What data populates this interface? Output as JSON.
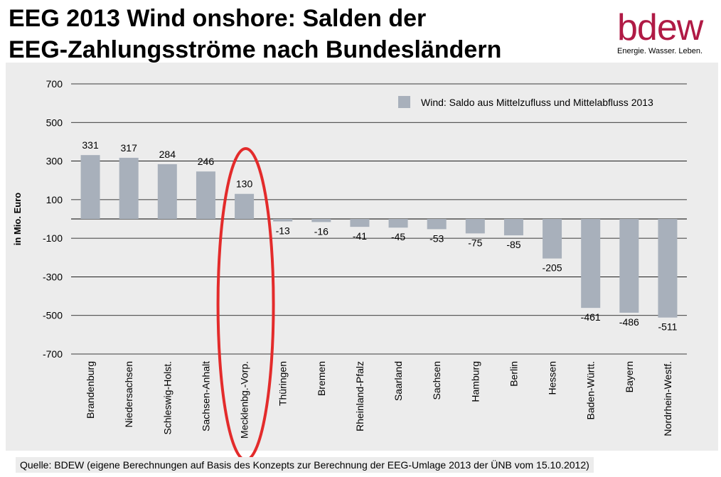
{
  "header": {
    "title_line1": "EEG 2013 Wind onshore: Salden der",
    "title_line2": "EEG-Zahlungsströme nach Bundesländern"
  },
  "logo": {
    "word": "bdew",
    "tagline": "Energie. Wasser. Leben.",
    "color": "#b01a45"
  },
  "source": "Quelle: BDEW (eigene Berechnungen auf Basis des Konzepts zur Berechnung der EEG-Umlage 2013 der ÜNB vom 15.10.2012)",
  "chart_data": {
    "type": "bar",
    "ylabel": "in Mio. Euro",
    "ylim": [
      -700,
      700
    ],
    "yticks": [
      700,
      500,
      300,
      100,
      -100,
      -300,
      -500,
      -700
    ],
    "grid": true,
    "legend_position": "top-right",
    "bar_color": "#a8b0bb",
    "highlight": {
      "category": "Mecklenbg.-Vorp.",
      "shape": "ellipse",
      "color": "#e32b2b"
    },
    "categories": [
      "Brandenburg",
      "Niedersachsen",
      "Schleswig-Holst.",
      "Sachsen-Anhalt",
      "Mecklenbg.-Vorp.",
      "Thüringen",
      "Bremen",
      "Rheinland-Pfalz",
      "Saarland",
      "Sachsen",
      "Hamburg",
      "Berlin",
      "Hessen",
      "Baden-Württ.",
      "Bayern",
      "Nordrhein-Westf."
    ],
    "series": [
      {
        "name": "Wind: Saldo aus Mittelzufluss und Mittelabfluss 2013",
        "values": [
          331,
          317,
          284,
          246,
          130,
          -13,
          -16,
          -41,
          -45,
          -53,
          -75,
          -85,
          -205,
          -461,
          -486,
          -511
        ]
      }
    ]
  }
}
